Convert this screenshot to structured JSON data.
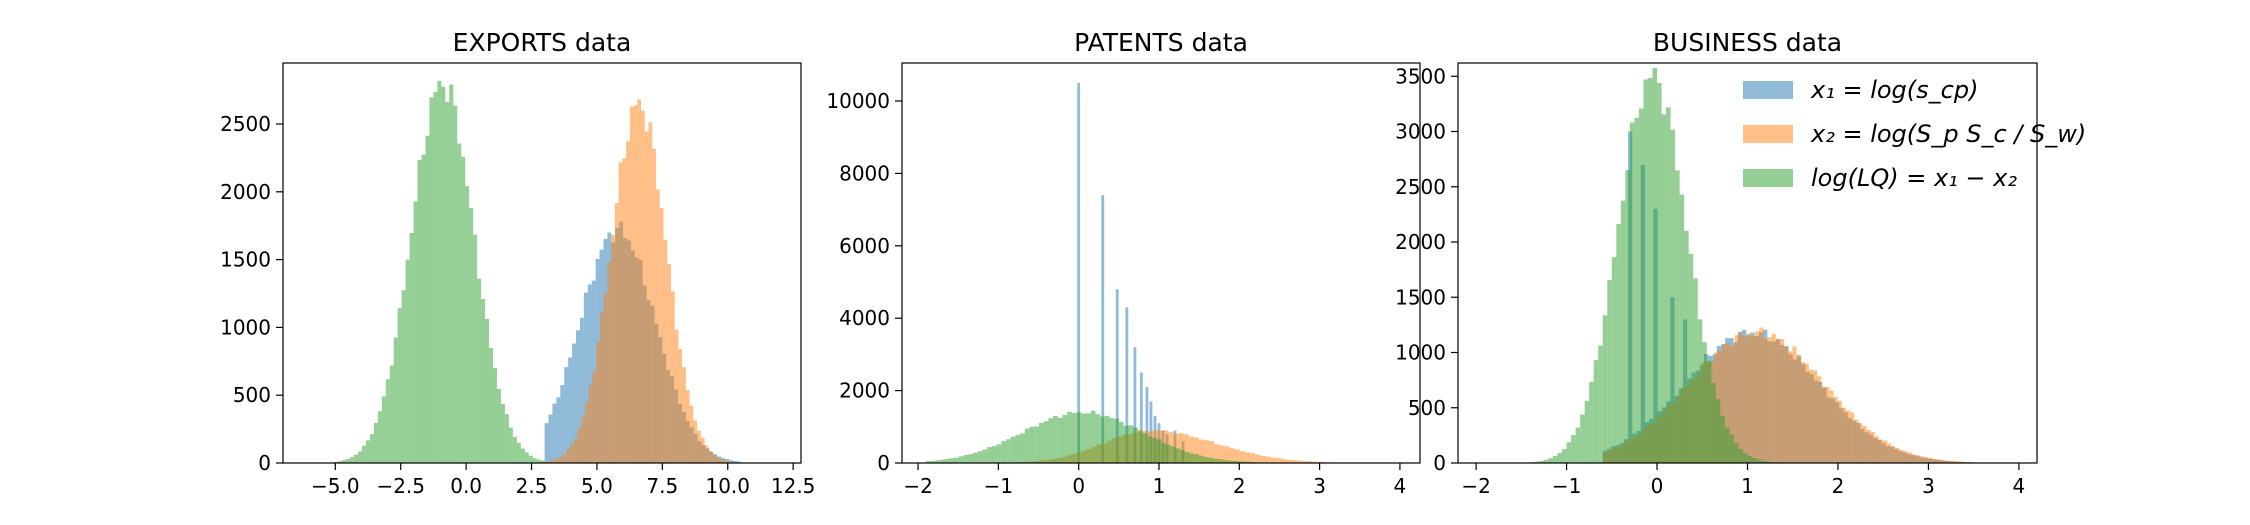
{
  "colors": {
    "x1": "#1f77b4",
    "x2": "#ff7f0e",
    "lq": "#2ca02c"
  },
  "legend": {
    "entries": [
      {
        "series": "x1",
        "label": "x₁ = log(s_cp)"
      },
      {
        "series": "x2",
        "label": "x₂ = log(S_p S_c / S_w)"
      },
      {
        "series": "lq",
        "label": "log(LQ) = x₁ − x₂"
      }
    ],
    "placement": "top-right of BUSINESS panel"
  },
  "chart_data": [
    {
      "type": "histogram",
      "title": "EXPORTS data",
      "xlabel": "",
      "ylabel": "",
      "xlim": [
        -7.0,
        12.8
      ],
      "ylim": [
        0,
        2950
      ],
      "xticks": [
        -5.0,
        -2.5,
        0.0,
        2.5,
        5.0,
        7.5,
        10.0,
        12.5
      ],
      "xtick_labels": [
        "−5.0",
        "−2.5",
        "0.0",
        "2.5",
        "5.0",
        "7.5",
        "10.0",
        "12.5"
      ],
      "yticks": [
        0,
        500,
        1000,
        1500,
        2000,
        2500
      ],
      "ytick_labels": [
        "0",
        "500",
        "1000",
        "1500",
        "2000",
        "2500"
      ],
      "alpha": 0.5,
      "series": [
        {
          "key": "x1",
          "shape": "normal",
          "mean": 5.8,
          "sd": 1.45,
          "peak": 1720,
          "xmin": 3.0,
          "xmax": 10.5,
          "bins": 50
        },
        {
          "key": "x2",
          "shape": "normal",
          "mean": 6.6,
          "sd": 1.05,
          "peak": 2650,
          "xmin": 2.4,
          "xmax": 10.4,
          "bins": 56
        },
        {
          "key": "lq",
          "shape": "normal",
          "mean": -0.9,
          "sd": 1.2,
          "peak": 2800,
          "xmin": -5.5,
          "xmax": 3.0,
          "bins": 56
        }
      ]
    },
    {
      "type": "histogram",
      "title": "PATENTS data",
      "xlabel": "",
      "ylabel": "",
      "xlim": [
        -2.2,
        4.25
      ],
      "ylim": [
        0,
        11050
      ],
      "xticks": [
        -2,
        -1,
        0,
        1,
        2,
        3,
        4
      ],
      "xtick_labels": [
        "−2",
        "−1",
        "0",
        "1",
        "2",
        "3",
        "4"
      ],
      "yticks": [
        0,
        2000,
        4000,
        6000,
        8000,
        10000
      ],
      "ytick_labels": [
        "0",
        "2000",
        "4000",
        "6000",
        "8000",
        "10000"
      ],
      "alpha": 0.5,
      "series": [
        {
          "key": "x1",
          "shape": "spikes",
          "width": 0.035,
          "x": [
            0.0,
            0.3,
            0.48,
            0.6,
            0.7,
            0.78,
            0.85,
            0.9,
            0.95,
            1.0,
            1.05,
            1.1,
            1.2,
            1.3
          ],
          "y": [
            10500,
            7400,
            4800,
            4300,
            3200,
            2500,
            2100,
            1700,
            1300,
            1100,
            900,
            800,
            900,
            600
          ]
        },
        {
          "key": "x2",
          "shape": "skewed",
          "mean": 0.9,
          "sd": 0.7,
          "peak": 900,
          "xmin": -1.5,
          "xmax": 3.6,
          "bins": 80
        },
        {
          "key": "lq",
          "shape": "normal",
          "mean": 0.05,
          "sd": 0.75,
          "peak": 1400,
          "xmin": -1.9,
          "xmax": 2.2,
          "bins": 70
        }
      ]
    },
    {
      "type": "histogram",
      "title": "BUSINESS data",
      "xlabel": "",
      "ylabel": "",
      "xlim": [
        -2.2,
        4.2
      ],
      "ylim": [
        0,
        3620
      ],
      "xticks": [
        -2,
        -1,
        0,
        1,
        2,
        3,
        4
      ],
      "xtick_labels": [
        "−2",
        "−1",
        "0",
        "1",
        "2",
        "3",
        "4"
      ],
      "yticks": [
        0,
        500,
        1000,
        1500,
        2000,
        2500,
        3000,
        3500
      ],
      "ytick_labels": [
        "0",
        "500",
        "1000",
        "1500",
        "2000",
        "2500",
        "3000",
        "3500"
      ],
      "alpha": 0.5,
      "series": [
        {
          "key": "x1",
          "shape": "mixture",
          "mean": 1.05,
          "sd": 0.75,
          "peak": 1180,
          "xmin": -0.6,
          "xmax": 3.6,
          "bins": 90,
          "spikes_x": [
            -0.3,
            -0.15,
            0.0,
            0.15,
            0.3
          ],
          "spikes_y": [
            3000,
            2700,
            2300,
            1500,
            1300
          ]
        },
        {
          "key": "x2",
          "shape": "normal",
          "mean": 1.1,
          "sd": 0.75,
          "peak": 1180,
          "xmin": -0.6,
          "xmax": 3.5,
          "bins": 90
        },
        {
          "key": "lq",
          "shape": "normal",
          "mean": -0.05,
          "sd": 0.38,
          "peak": 3500,
          "xmin": -1.5,
          "xmax": 1.6,
          "bins": 62
        }
      ]
    }
  ]
}
